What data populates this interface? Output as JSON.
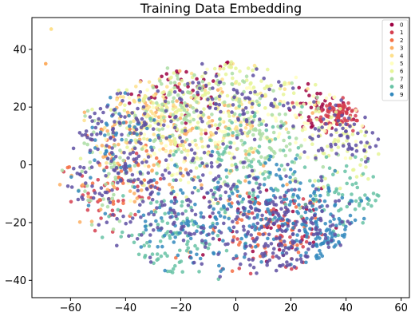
{
  "chart_data": {
    "type": "scatter",
    "title": "Training Data Embedding",
    "xlabel": "",
    "ylabel": "",
    "xlim": [
      -74,
      63
    ],
    "ylim": [
      -46,
      51
    ],
    "xticks": [
      -60,
      -40,
      -20,
      0,
      20,
      40,
      60
    ],
    "yticks": [
      -40,
      -20,
      0,
      20,
      40
    ],
    "legend_position": "top-right",
    "grid": false,
    "series": [
      {
        "name": "0",
        "color": "#9e0142",
        "clusters": [
          [
            [
              -18,
              25,
              10,
              7,
              55
            ],
            [
              30,
              18,
              6,
              4,
              40
            ],
            [
              10,
              -20,
              14,
              8,
              40
            ]
          ]
        ]
      },
      {
        "name": "1",
        "color": "#d53e4f",
        "clusters": [
          [
            [
              38,
              18,
              5,
              3,
              90
            ],
            [
              -45,
              -10,
              10,
              6,
              40
            ],
            [
              15,
              -25,
              10,
              6,
              50
            ]
          ]
        ]
      },
      {
        "name": "2",
        "color": "#f46d43",
        "clusters": [
          [
            [
              -40,
              0,
              10,
              12,
              40
            ],
            [
              10,
              -25,
              12,
              8,
              50
            ]
          ]
        ]
      },
      {
        "name": "3",
        "color": "#fdae61",
        "clusters": [
          [
            [
              -35,
              5,
              13,
              12,
              80
            ],
            [
              -10,
              10,
              12,
              10,
              50
            ]
          ]
        ]
      },
      {
        "name": "4",
        "color": "#fee08b",
        "clusters": [
          [
            [
              -30,
              15,
              12,
              9,
              90
            ],
            [
              0,
              20,
              12,
              8,
              70
            ]
          ]
        ]
      },
      {
        "name": "5",
        "color": "#ffffbf",
        "clusters": [
          [
            [
              -20,
              5,
              15,
              12,
              90
            ],
            [
              30,
              15,
              12,
              8,
              60
            ]
          ]
        ]
      },
      {
        "name": "6",
        "color": "#e6f598",
        "clusters": [
          [
            [
              -25,
              15,
              14,
              10,
              110
            ],
            [
              5,
              25,
              14,
              8,
              80
            ],
            [
              40,
              5,
              9,
              6,
              50
            ]
          ]
        ]
      },
      {
        "name": "7",
        "color": "#abdda4",
        "clusters": [
          [
            [
              -15,
              20,
              12,
              8,
              110
            ],
            [
              10,
              5,
              12,
              8,
              90
            ],
            [
              -45,
              0,
              8,
              10,
              60
            ]
          ]
        ]
      },
      {
        "name": "8",
        "color": "#66c2a5",
        "clusters": [
          [
            [
              -25,
              -25,
              10,
              8,
              90
            ],
            [
              0,
              0,
              12,
              10,
              100
            ],
            [
              40,
              -10,
              8,
              6,
              60
            ]
          ]
        ]
      },
      {
        "name": "9",
        "color": "#3288bd",
        "clusters": [
          [
            [
              20,
              -15,
              15,
              10,
              150
            ],
            [
              -15,
              -20,
              14,
              8,
              100
            ],
            [
              -45,
              10,
              8,
              8,
              50
            ],
            [
              35,
              -28,
              8,
              6,
              60
            ]
          ]
        ]
      },
      {
        "name": "",
        "color": "#5e4fa2",
        "clusters": [
          [
            [
              15,
              -25,
              15,
              10,
              200
            ],
            [
              -25,
              -5,
              18,
              14,
              200
            ],
            [
              -45,
              10,
              8,
              10,
              80
            ],
            [
              40,
              10,
              8,
              6,
              60
            ],
            [
              0,
              20,
              12,
              8,
              80
            ]
          ]
        ]
      }
    ],
    "outliers": [
      {
        "x": -67,
        "y": 47,
        "color": "#fee08b"
      },
      {
        "x": -69,
        "y": 35,
        "color": "#fdae61"
      }
    ]
  }
}
